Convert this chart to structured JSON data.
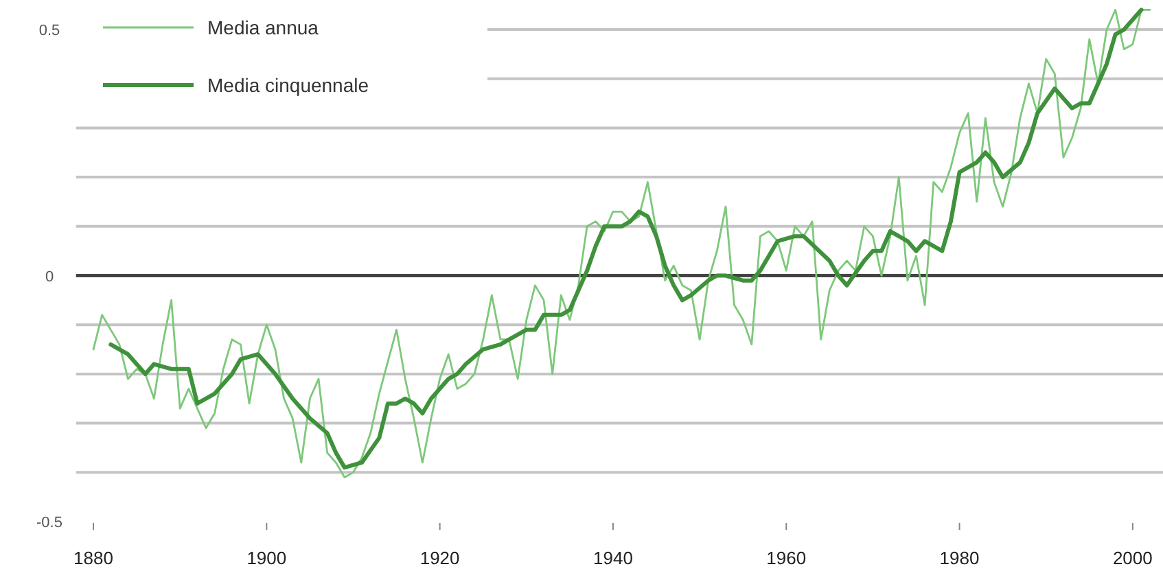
{
  "chart_data": {
    "type": "line",
    "xlim": [
      1878,
      2003.5
    ],
    "ylim": [
      -0.5,
      0.56
    ],
    "xticks": [
      1880,
      1900,
      1920,
      1940,
      1960,
      1980,
      2000
    ],
    "yticks": [
      -0.5,
      {
        "value": -0.4,
        "label": null
      },
      {
        "value": -0.3,
        "label": null
      },
      {
        "value": -0.2,
        "label": null
      },
      {
        "value": -0.1,
        "label": null
      },
      0,
      {
        "value": 0.1,
        "label": null
      },
      {
        "value": 0.2,
        "label": null
      },
      {
        "value": 0.3,
        "label": null
      },
      {
        "value": 0.4,
        "label": null
      },
      0.5
    ],
    "grid": "y",
    "legend": "top left",
    "marker": "none",
    "line_style": "solid",
    "ref_lines": [
      {
        "axis": "y",
        "value": 0,
        "color": "#444444"
      }
    ],
    "series": [
      {
        "name": "Media annua",
        "color": "#7dc87a",
        "x": [
          1880,
          1881,
          1882,
          1883,
          1884,
          1885,
          1886,
          1887,
          1888,
          1889,
          1890,
          1891,
          1892,
          1893,
          1894,
          1895,
          1896,
          1897,
          1898,
          1899,
          1900,
          1901,
          1902,
          1903,
          1904,
          1905,
          1906,
          1907,
          1908,
          1909,
          1910,
          1911,
          1912,
          1913,
          1915,
          1916,
          1917,
          1918,
          1919,
          1920,
          1921,
          1922,
          1923,
          1924,
          1925,
          1926,
          1927,
          1928,
          1929,
          1930,
          1931,
          1932,
          1933,
          1934,
          1935,
          1936,
          1937,
          1938,
          1939,
          1940,
          1941,
          1942,
          1943,
          1944,
          1945,
          1946,
          1947,
          1948,
          1949,
          1950,
          1951,
          1952,
          1953,
          1954,
          1955,
          1956,
          1957,
          1958,
          1959,
          1960,
          1961,
          1962,
          1963,
          1964,
          1965,
          1966,
          1967,
          1968,
          1969,
          1970,
          1971,
          1972,
          1973,
          1974,
          1975,
          1976,
          1977,
          1978,
          1979,
          1980,
          1981,
          1982,
          1983,
          1984,
          1985,
          1986,
          1987,
          1988,
          1989,
          1990,
          1991,
          1992,
          1993,
          1994,
          1995,
          1996,
          1997,
          1998,
          1999,
          2000,
          2001,
          2002
        ],
        "values": [
          -0.15,
          -0.08,
          -0.11,
          -0.14,
          -0.21,
          -0.19,
          -0.2,
          -0.25,
          -0.14,
          -0.05,
          -0.27,
          -0.23,
          -0.27,
          -0.31,
          -0.28,
          -0.19,
          -0.13,
          -0.14,
          -0.26,
          -0.16,
          -0.1,
          -0.15,
          -0.25,
          -0.29,
          -0.38,
          -0.25,
          -0.21,
          -0.36,
          -0.38,
          -0.41,
          -0.4,
          -0.37,
          -0.32,
          -0.24,
          -0.11,
          -0.21,
          -0.29,
          -0.38,
          -0.29,
          -0.21,
          -0.16,
          -0.23,
          -0.22,
          -0.2,
          -0.13,
          -0.04,
          -0.13,
          -0.13,
          -0.21,
          -0.09,
          -0.02,
          -0.05,
          -0.2,
          -0.04,
          -0.09,
          -0.02,
          0.1,
          0.11,
          0.09,
          0.13,
          0.13,
          0.11,
          0.12,
          0.19,
          0.09,
          -0.01,
          0.02,
          -0.02,
          -0.03,
          -0.13,
          -0.01,
          0.05,
          0.14,
          -0.06,
          -0.09,
          -0.14,
          0.08,
          0.09,
          0.07,
          0.01,
          0.1,
          0.08,
          0.11,
          -0.13,
          -0.03,
          0.01,
          0.03,
          0.01,
          0.1,
          0.08,
          0,
          0.08,
          0.2,
          -0.01,
          0.04,
          -0.06,
          0.19,
          0.17,
          0.22,
          0.29,
          0.33,
          0.15,
          0.32,
          0.19,
          0.14,
          0.21,
          0.32,
          0.39,
          0.33,
          0.44,
          0.41,
          0.24,
          0.28,
          0.34,
          0.48,
          0.39,
          0.5,
          0.54,
          0.46,
          0.47,
          0.54,
          0.54
        ]
      },
      {
        "name": "Media cinquennale",
        "color": "#3f913c",
        "x": [
          1882,
          1884,
          1886,
          1887,
          1889,
          1891,
          1892,
          1894,
          1896,
          1897,
          1899,
          1900,
          1901,
          1903,
          1905,
          1907,
          1908,
          1909,
          1911,
          1913,
          1914,
          1915,
          1916,
          1917,
          1918,
          1919,
          1921,
          1922,
          1923,
          1925,
          1927,
          1928,
          1930,
          1931,
          1932,
          1934,
          1935,
          1937,
          1938,
          1939,
          1941,
          1942,
          1943,
          1944,
          1945,
          1946,
          1947,
          1948,
          1949,
          1951,
          1952,
          1953,
          1955,
          1956,
          1957,
          1959,
          1961,
          1962,
          1965,
          1966,
          1967,
          1969,
          1970,
          1971,
          1972,
          1974,
          1975,
          1976,
          1978,
          1979,
          1980,
          1982,
          1983,
          1984,
          1985,
          1987,
          1988,
          1989,
          1991,
          1993,
          1994,
          1995,
          1997,
          1998,
          1999,
          2001
        ],
        "values": [
          -0.14,
          -0.16,
          -0.2,
          -0.18,
          -0.19,
          -0.19,
          -0.26,
          -0.24,
          -0.2,
          -0.17,
          -0.16,
          -0.18,
          -0.2,
          -0.25,
          -0.29,
          -0.32,
          -0.36,
          -0.39,
          -0.38,
          -0.33,
          -0.26,
          -0.26,
          -0.25,
          -0.26,
          -0.28,
          -0.25,
          -0.21,
          -0.2,
          -0.18,
          -0.15,
          -0.14,
          -0.13,
          -0.11,
          -0.11,
          -0.08,
          -0.08,
          -0.07,
          0.01,
          0.06,
          0.1,
          0.1,
          0.11,
          0.13,
          0.12,
          0.08,
          0.02,
          -0.02,
          -0.05,
          -0.04,
          -0.01,
          0,
          0,
          -0.01,
          -0.01,
          0.01,
          0.07,
          0.08,
          0.08,
          0.03,
          0,
          -0.02,
          0.03,
          0.05,
          0.05,
          0.09,
          0.07,
          0.05,
          0.07,
          0.05,
          0.11,
          0.21,
          0.23,
          0.25,
          0.23,
          0.2,
          0.23,
          0.27,
          0.33,
          0.38,
          0.34,
          0.35,
          0.35,
          0.43,
          0.49,
          0.5,
          0.54
        ]
      }
    ]
  }
}
